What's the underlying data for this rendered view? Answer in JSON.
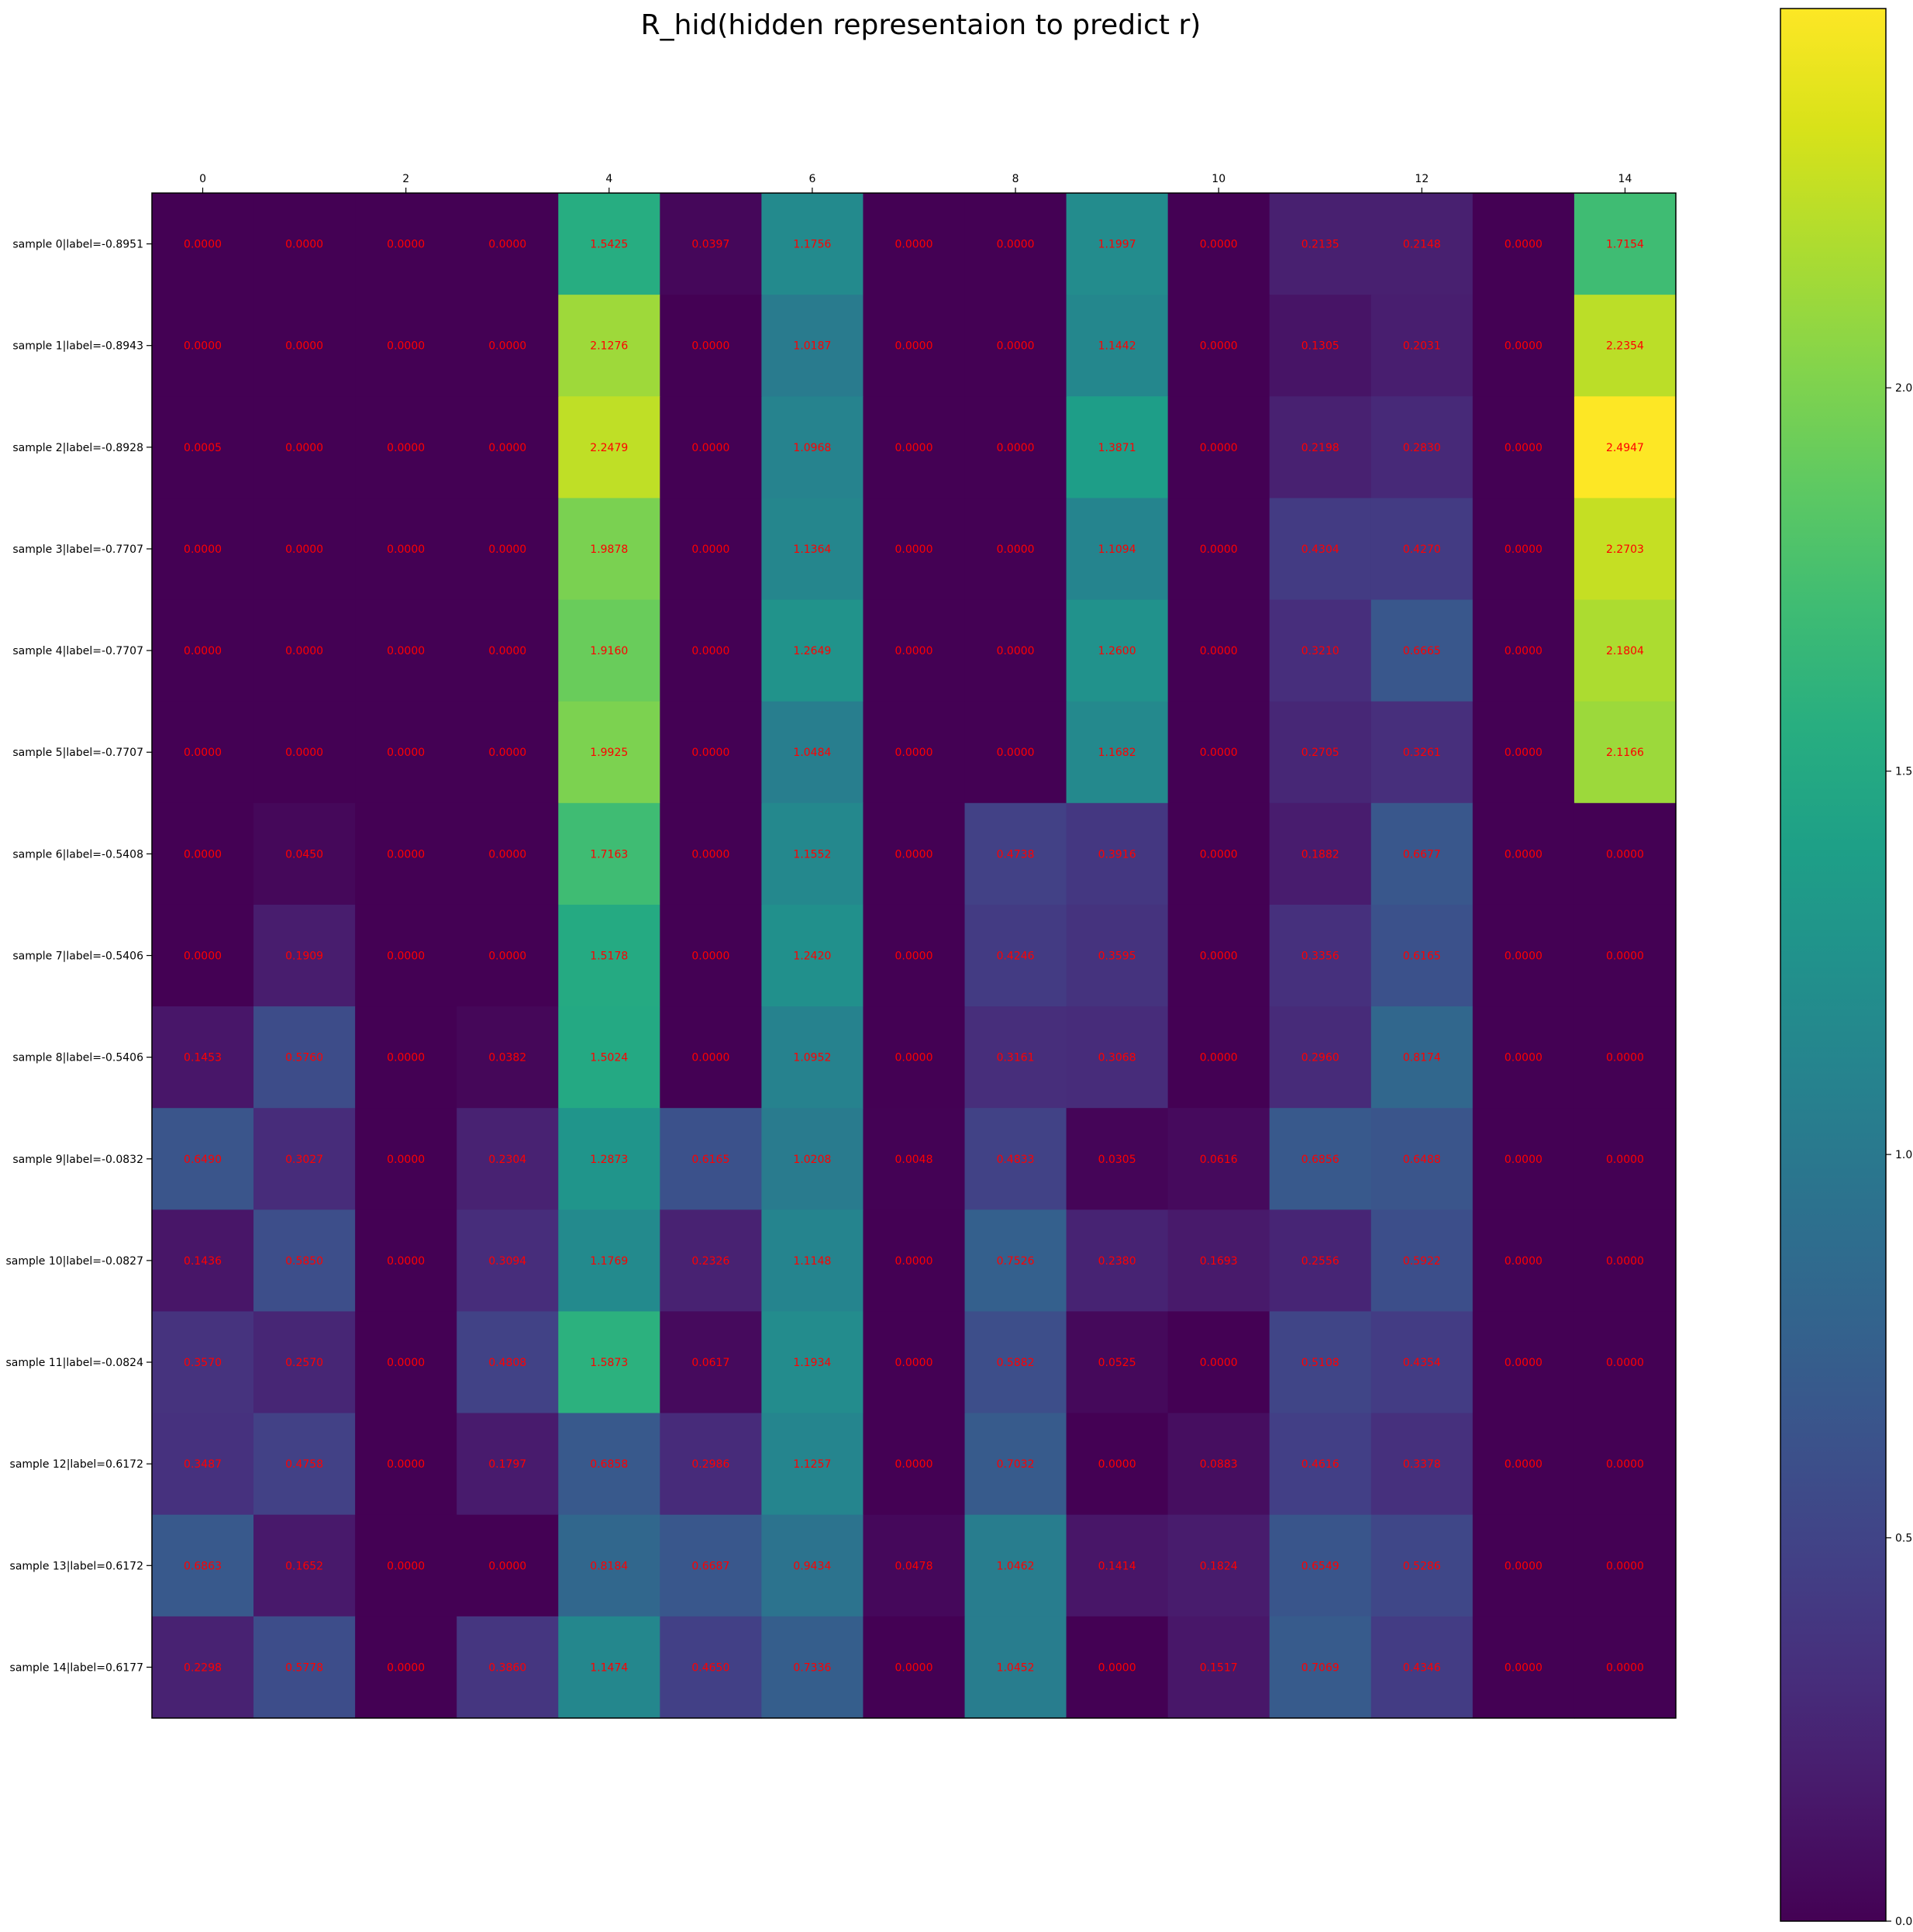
{
  "chart_data": {
    "type": "heatmap",
    "title": "R_hid(hidden representaion to predict r)",
    "x": [
      "0",
      "1",
      "2",
      "3",
      "4",
      "5",
      "6",
      "7",
      "8",
      "9",
      "10",
      "11",
      "12",
      "13",
      "14"
    ],
    "x_tick_labels": [
      "0",
      "2",
      "4",
      "6",
      "8",
      "10",
      "12",
      "14"
    ],
    "rows": [
      "sample 0|label=-0.8951",
      "sample 1|label=-0.8943",
      "sample 2|label=-0.8928",
      "sample 3|label=-0.7707",
      "sample 4|label=-0.7707",
      "sample 5|label=-0.7707",
      "sample 6|label=-0.5408",
      "sample 7|label=-0.5406",
      "sample 8|label=-0.5406",
      "sample 9|label=-0.0832",
      "sample 10|label=-0.0827",
      "sample 11|label=-0.0824",
      "sample 12|label=0.6172",
      "sample 13|label=0.6172",
      "sample 14|label=0.6177"
    ],
    "values": [
      [
        0.0,
        0.0,
        0.0,
        0.0,
        1.5425,
        0.0397,
        1.1756,
        0.0,
        0.0,
        1.1997,
        0.0,
        0.2135,
        0.2148,
        0.0,
        1.7154
      ],
      [
        0.0,
        0.0,
        0.0,
        0.0,
        2.1276,
        0.0,
        1.0187,
        0.0,
        0.0,
        1.1442,
        0.0,
        0.1305,
        0.2031,
        0.0,
        2.2354
      ],
      [
        0.0005,
        0.0,
        0.0,
        0.0,
        2.2479,
        0.0,
        1.0968,
        0.0,
        0.0,
        1.3871,
        0.0,
        0.2198,
        0.283,
        0.0,
        2.4947
      ],
      [
        0.0,
        0.0,
        0.0,
        0.0,
        1.9878,
        0.0,
        1.1364,
        0.0,
        0.0,
        1.1094,
        0.0,
        0.4304,
        0.427,
        0.0,
        2.2703
      ],
      [
        0.0,
        0.0,
        0.0,
        0.0,
        1.916,
        0.0,
        1.2649,
        0.0,
        0.0,
        1.26,
        0.0,
        0.321,
        0.6665,
        0.0,
        2.1804
      ],
      [
        0.0,
        0.0,
        0.0,
        0.0,
        1.9925,
        0.0,
        1.0484,
        0.0,
        0.0,
        1.1682,
        0.0,
        0.2705,
        0.3261,
        0.0,
        2.1166
      ],
      [
        0.0,
        0.045,
        0.0,
        0.0,
        1.7163,
        0.0,
        1.1552,
        0.0,
        0.4738,
        0.3916,
        0.0,
        0.1882,
        0.6677,
        0.0,
        0.0
      ],
      [
        0.0,
        0.1909,
        0.0,
        0.0,
        1.5178,
        0.0,
        1.242,
        0.0,
        0.4246,
        0.3595,
        0.0,
        0.3356,
        0.6165,
        0.0,
        0.0
      ],
      [
        0.1453,
        0.576,
        0.0,
        0.0382,
        1.5024,
        0.0,
        1.0952,
        0.0,
        0.3161,
        0.3068,
        0.0,
        0.296,
        0.8174,
        0.0,
        0.0
      ],
      [
        0.649,
        0.3027,
        0.0,
        0.2304,
        1.2873,
        0.6165,
        1.0208,
        0.0048,
        0.4833,
        0.0305,
        0.0616,
        0.6856,
        0.6488,
        0.0,
        0.0
      ],
      [
        0.1436,
        0.585,
        0.0,
        0.3094,
        1.1769,
        0.2326,
        1.1148,
        0.0,
        0.7526,
        0.238,
        0.1693,
        0.2556,
        0.5922,
        0.0,
        0.0
      ],
      [
        0.357,
        0.257,
        0.0,
        0.4808,
        1.5873,
        0.0617,
        1.1934,
        0.0,
        0.5882,
        0.0525,
        0.0,
        0.5108,
        0.4354,
        0.0,
        0.0
      ],
      [
        0.3487,
        0.4758,
        0.0,
        0.1797,
        0.6858,
        0.2986,
        1.1257,
        0.0,
        0.7032,
        0.0,
        0.0883,
        0.4616,
        0.3378,
        0.0,
        0.0
      ],
      [
        0.6863,
        0.1652,
        0.0,
        0.0,
        0.8184,
        0.6687,
        0.9434,
        0.0478,
        1.0462,
        0.1414,
        0.1824,
        0.6549,
        0.5286,
        0.0,
        0.0
      ],
      [
        0.2298,
        0.5778,
        0.0,
        0.386,
        1.1474,
        0.465,
        0.7336,
        0.0,
        1.0452,
        0.0,
        0.1517,
        0.7069,
        0.4346,
        0.0,
        0.0
      ]
    ],
    "value_format": "4 decimals",
    "colormap": "viridis",
    "colorbar": {
      "min": 0.0,
      "max": 2.4947,
      "ticks": [
        "0.0",
        "0.5",
        "1.0",
        "1.5",
        "2.0"
      ]
    },
    "annotation_color": "#ff0000",
    "grid": false,
    "x_axis_position": "top"
  }
}
